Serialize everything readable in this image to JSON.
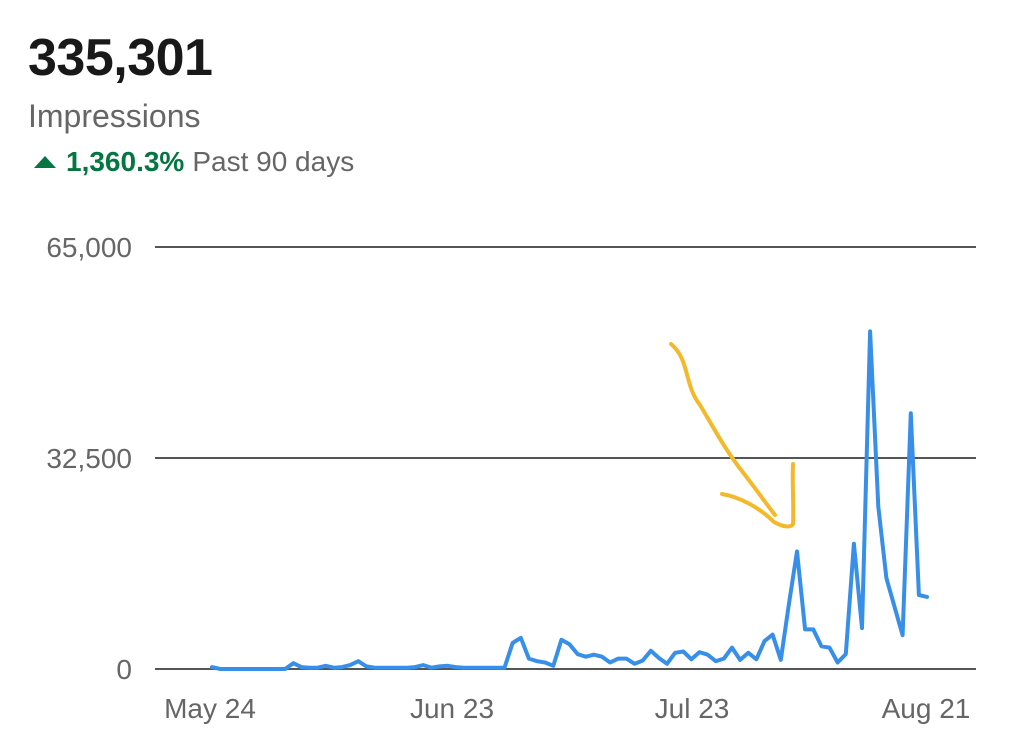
{
  "header": {
    "total": "335,301",
    "metric": "Impressions",
    "change_value": "1,360.3%",
    "change_period": "Past 90 days",
    "change_direction": "up",
    "change_color": "#057642"
  },
  "chart_data": {
    "type": "line",
    "title": "",
    "xlabel": "",
    "ylabel": "",
    "ylim": [
      0,
      65000
    ],
    "yticks": [
      {
        "value": 0,
        "label": "0"
      },
      {
        "value": 32500,
        "label": "32,500"
      },
      {
        "value": 65000,
        "label": "65,000"
      }
    ],
    "xticks": [
      "May 24",
      "Jun 23",
      "Jul 23",
      "Aug 21"
    ],
    "x_range": [
      "May 24",
      "Aug 21"
    ],
    "grid": "horizontal",
    "line_color": "#378fe9",
    "annotation": {
      "type": "hand-drawn arrow",
      "color": "#f4b92a"
    },
    "series": [
      {
        "values": [
          300,
          0,
          0,
          0,
          0,
          0,
          0,
          0,
          0,
          0,
          900,
          300,
          200,
          200,
          500,
          200,
          300,
          600,
          1200,
          400,
          200,
          200,
          200,
          200,
          200,
          300,
          600,
          200,
          400,
          500,
          300,
          200,
          200,
          200,
          200,
          200,
          200,
          4000,
          4800,
          1600,
          1200,
          1000,
          500,
          4500,
          3800,
          2300,
          1900,
          2200,
          1900,
          1000,
          1600,
          1600,
          800,
          1300,
          2800,
          1700,
          800,
          2500,
          2700,
          1500,
          2600,
          2200,
          1200,
          1600,
          3300,
          1400,
          2500,
          1500,
          4300,
          5300,
          1400,
          10000,
          18100,
          6100,
          6100,
          3500,
          3300,
          1000,
          2300,
          19300,
          6300,
          52000,
          25000,
          14000,
          9600,
          5200,
          39400,
          11400,
          11100
        ]
      }
    ]
  }
}
